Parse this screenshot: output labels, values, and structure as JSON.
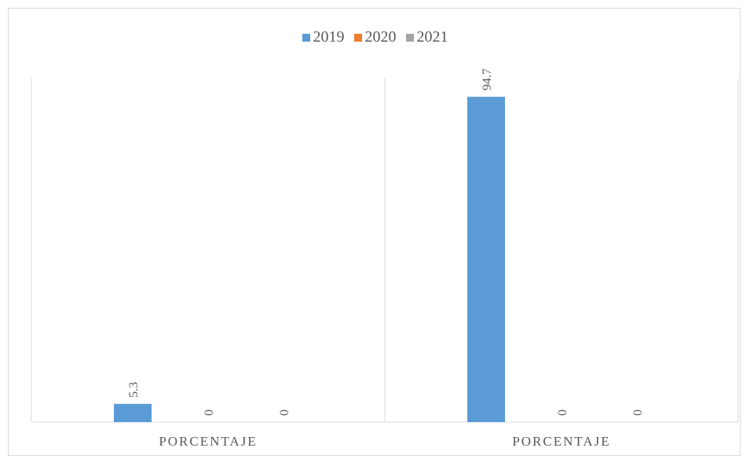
{
  "chart_data": {
    "type": "bar",
    "title": "",
    "xlabel": "",
    "ylabel": "",
    "categories": [
      "PORCENTAJE",
      "PORCENTAJE"
    ],
    "series": [
      {
        "name": "2019",
        "values": [
          5.3,
          94.7
        ],
        "color": "#5b9bd5"
      },
      {
        "name": "2020",
        "values": [
          0,
          0
        ],
        "color": "#ed7d31"
      },
      {
        "name": "2021",
        "values": [
          0,
          0
        ],
        "color": "#a5a5a5"
      }
    ],
    "ylim": [
      0,
      100
    ],
    "data_labels": [
      [
        "5.3",
        "94.7"
      ],
      [
        "0",
        "0"
      ],
      [
        "0",
        "0"
      ]
    ],
    "grid": false,
    "legend": "top-center"
  }
}
